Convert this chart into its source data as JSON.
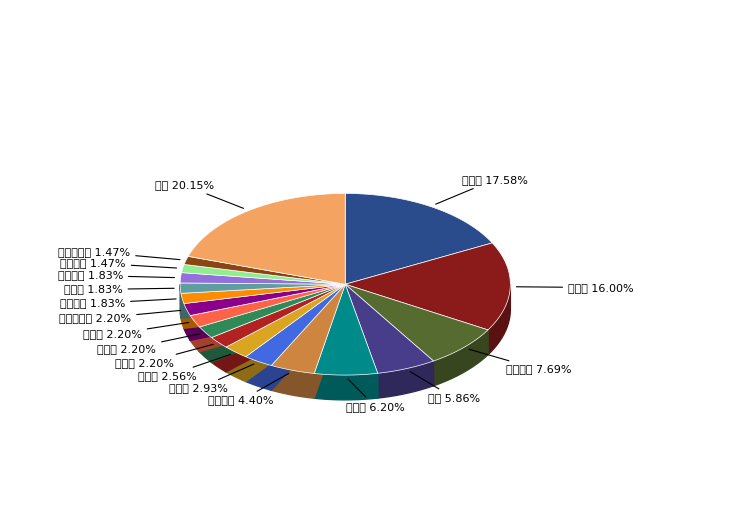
{
  "labels": [
    "국화과",
    "화본과",
    "마디풀과",
    "두과",
    "장미과",
    "십자화과",
    "석죽과",
    "꿀풀과",
    "가지과",
    "비름과",
    "산형과",
    "쥐손이풀과",
    "명아주과",
    "사초과",
    "질경이과",
    "괭이밥과",
    "꼭두서니과",
    "기타"
  ],
  "values": [
    17.58,
    16.0,
    7.69,
    5.86,
    6.2,
    4.4,
    2.93,
    2.56,
    2.2,
    2.2,
    2.2,
    2.2,
    1.83,
    1.83,
    1.83,
    1.47,
    1.47,
    20.15
  ],
  "colors": [
    "#2E4F8B",
    "#A52A2A",
    "#6B8E23",
    "#4B0082",
    "#2E8B8B",
    "#D2691E",
    "#4169E1",
    "#B8860B",
    "#DC143C",
    "#228B22",
    "#FF6347",
    "#9370DB",
    "#FF8C00",
    "#20B2AA",
    "#DDA0DD",
    "#8FBC8F",
    "#8B4513",
    "#F4A460"
  ],
  "explode_index": [],
  "startangle": 90,
  "title": ""
}
